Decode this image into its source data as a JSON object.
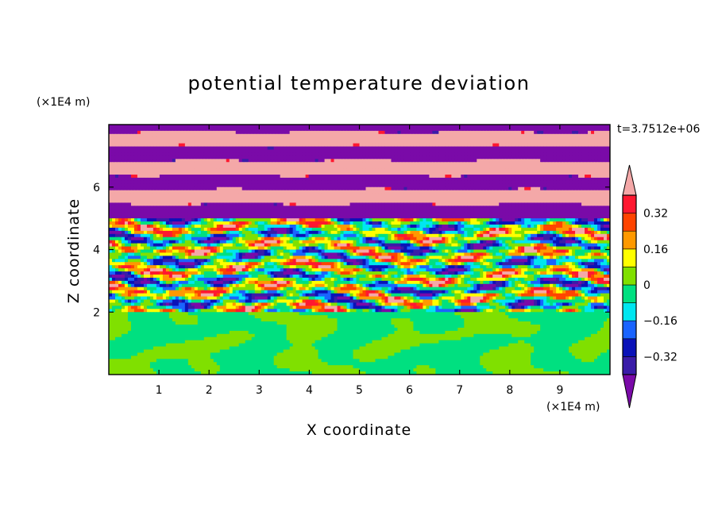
{
  "chart_data": {
    "type": "heatmap",
    "title": "potential temperature deviation",
    "xlabel": "X coordinate",
    "ylabel": "Z coordinate",
    "x_unit": "(×1E4 m)",
    "y_unit": "(×1E4 m)",
    "time_label": "t=3.7512e+06",
    "xlim": [
      0,
      10
    ],
    "ylim": [
      0,
      8
    ],
    "x_ticks": [
      1,
      2,
      3,
      4,
      5,
      6,
      7,
      8,
      9
    ],
    "y_ticks": [
      2,
      4,
      6
    ],
    "colorbar": {
      "levels": [
        -0.4,
        -0.32,
        -0.24,
        -0.16,
        -0.08,
        0,
        0.08,
        0.16,
        0.24,
        0.32,
        0.4
      ],
      "labels": [
        {
          "value": 0.32,
          "text": "0.32"
        },
        {
          "value": 0.16,
          "text": "0.16"
        },
        {
          "value": 0,
          "text": "0"
        },
        {
          "value": -0.16,
          "text": "−0.16"
        },
        {
          "value": -0.32,
          "text": "−0.32"
        }
      ],
      "colors": [
        "#7a0aa8",
        "#3a1ca8",
        "#0a12b8",
        "#1a64ff",
        "#00e6f0",
        "#00e080",
        "#80e000",
        "#ffff00",
        "#ff9900",
        "#ff4400",
        "#ff1830",
        "#f4a8a8"
      ],
      "extend": "both"
    },
    "layers": [
      {
        "z_range": [
          0,
          2
        ],
        "description_value": 0.0
      },
      {
        "z_range": [
          2,
          5
        ],
        "description_value": "mixed"
      },
      {
        "z_range": [
          5,
          8
        ],
        "description_value": "alternating"
      }
    ]
  }
}
